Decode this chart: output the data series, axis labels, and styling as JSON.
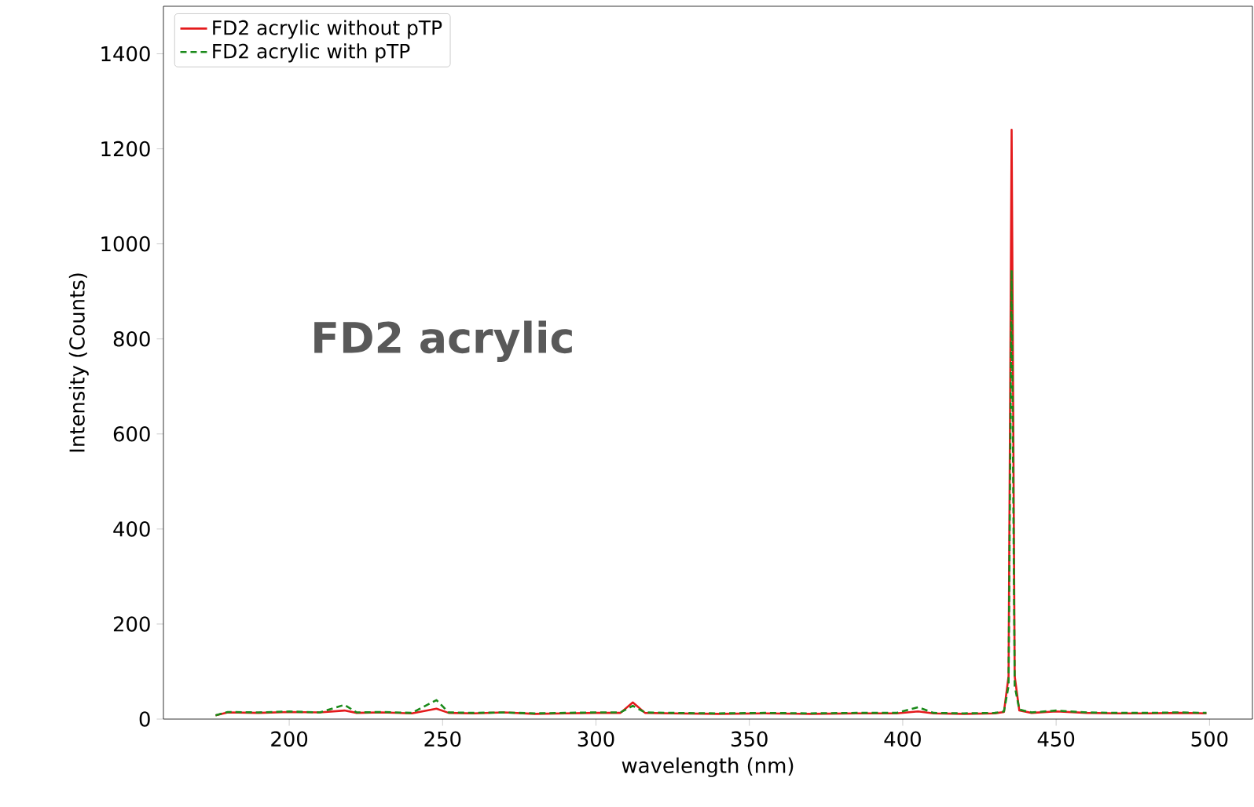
{
  "chart_data": {
    "type": "line",
    "xlabel": "wavelength (nm)",
    "ylabel": "Intensity (Counts)",
    "xlim": [
      159,
      514
    ],
    "ylim": [
      0,
      1500
    ],
    "xticks": [
      200,
      250,
      300,
      350,
      400,
      450,
      500
    ],
    "yticks": [
      0,
      200,
      400,
      600,
      800,
      1000,
      1200,
      1400
    ],
    "legend": "top left",
    "grid": false,
    "annotations": [
      "FD2 acrylic"
    ],
    "series": [
      {
        "name": "FD2 acrylic without pTP",
        "color": "#e41a1c",
        "line_style": "solid",
        "x": [
          176,
          180,
          190,
          200,
          210,
          218,
          222,
          230,
          240,
          248,
          252,
          260,
          270,
          280,
          290,
          300,
          308,
          312,
          316,
          325,
          340,
          355,
          370,
          385,
          398,
          405,
          410,
          420,
          430,
          433,
          434.5,
          435.5,
          436.5,
          438,
          442,
          450,
          460,
          470,
          480,
          490,
          499
        ],
        "values": [
          8,
          14,
          13,
          15,
          14,
          18,
          13,
          14,
          12,
          22,
          13,
          12,
          14,
          11,
          12,
          13,
          13,
          35,
          13,
          12,
          11,
          12,
          11,
          12,
          12,
          16,
          12,
          11,
          12,
          15,
          90,
          1240,
          90,
          18,
          13,
          16,
          13,
          12,
          12,
          13,
          12
        ]
      },
      {
        "name": "FD2 acrylic with pTP",
        "color": "#1a8a1a",
        "line_style": "dashed",
        "x": [
          176,
          180,
          190,
          200,
          210,
          218,
          222,
          230,
          240,
          248,
          252,
          260,
          270,
          280,
          290,
          300,
          308,
          312,
          316,
          325,
          340,
          355,
          370,
          385,
          398,
          405,
          410,
          420,
          430,
          433,
          434.5,
          435.5,
          436.5,
          438,
          442,
          450,
          460,
          470,
          480,
          490,
          499
        ],
        "values": [
          8,
          15,
          14,
          16,
          14,
          30,
          14,
          15,
          13,
          40,
          14,
          13,
          14,
          12,
          13,
          14,
          14,
          28,
          14,
          13,
          12,
          13,
          12,
          13,
          13,
          25,
          13,
          12,
          13,
          16,
          70,
          945,
          70,
          20,
          14,
          18,
          14,
          13,
          13,
          14,
          13
        ]
      }
    ]
  }
}
